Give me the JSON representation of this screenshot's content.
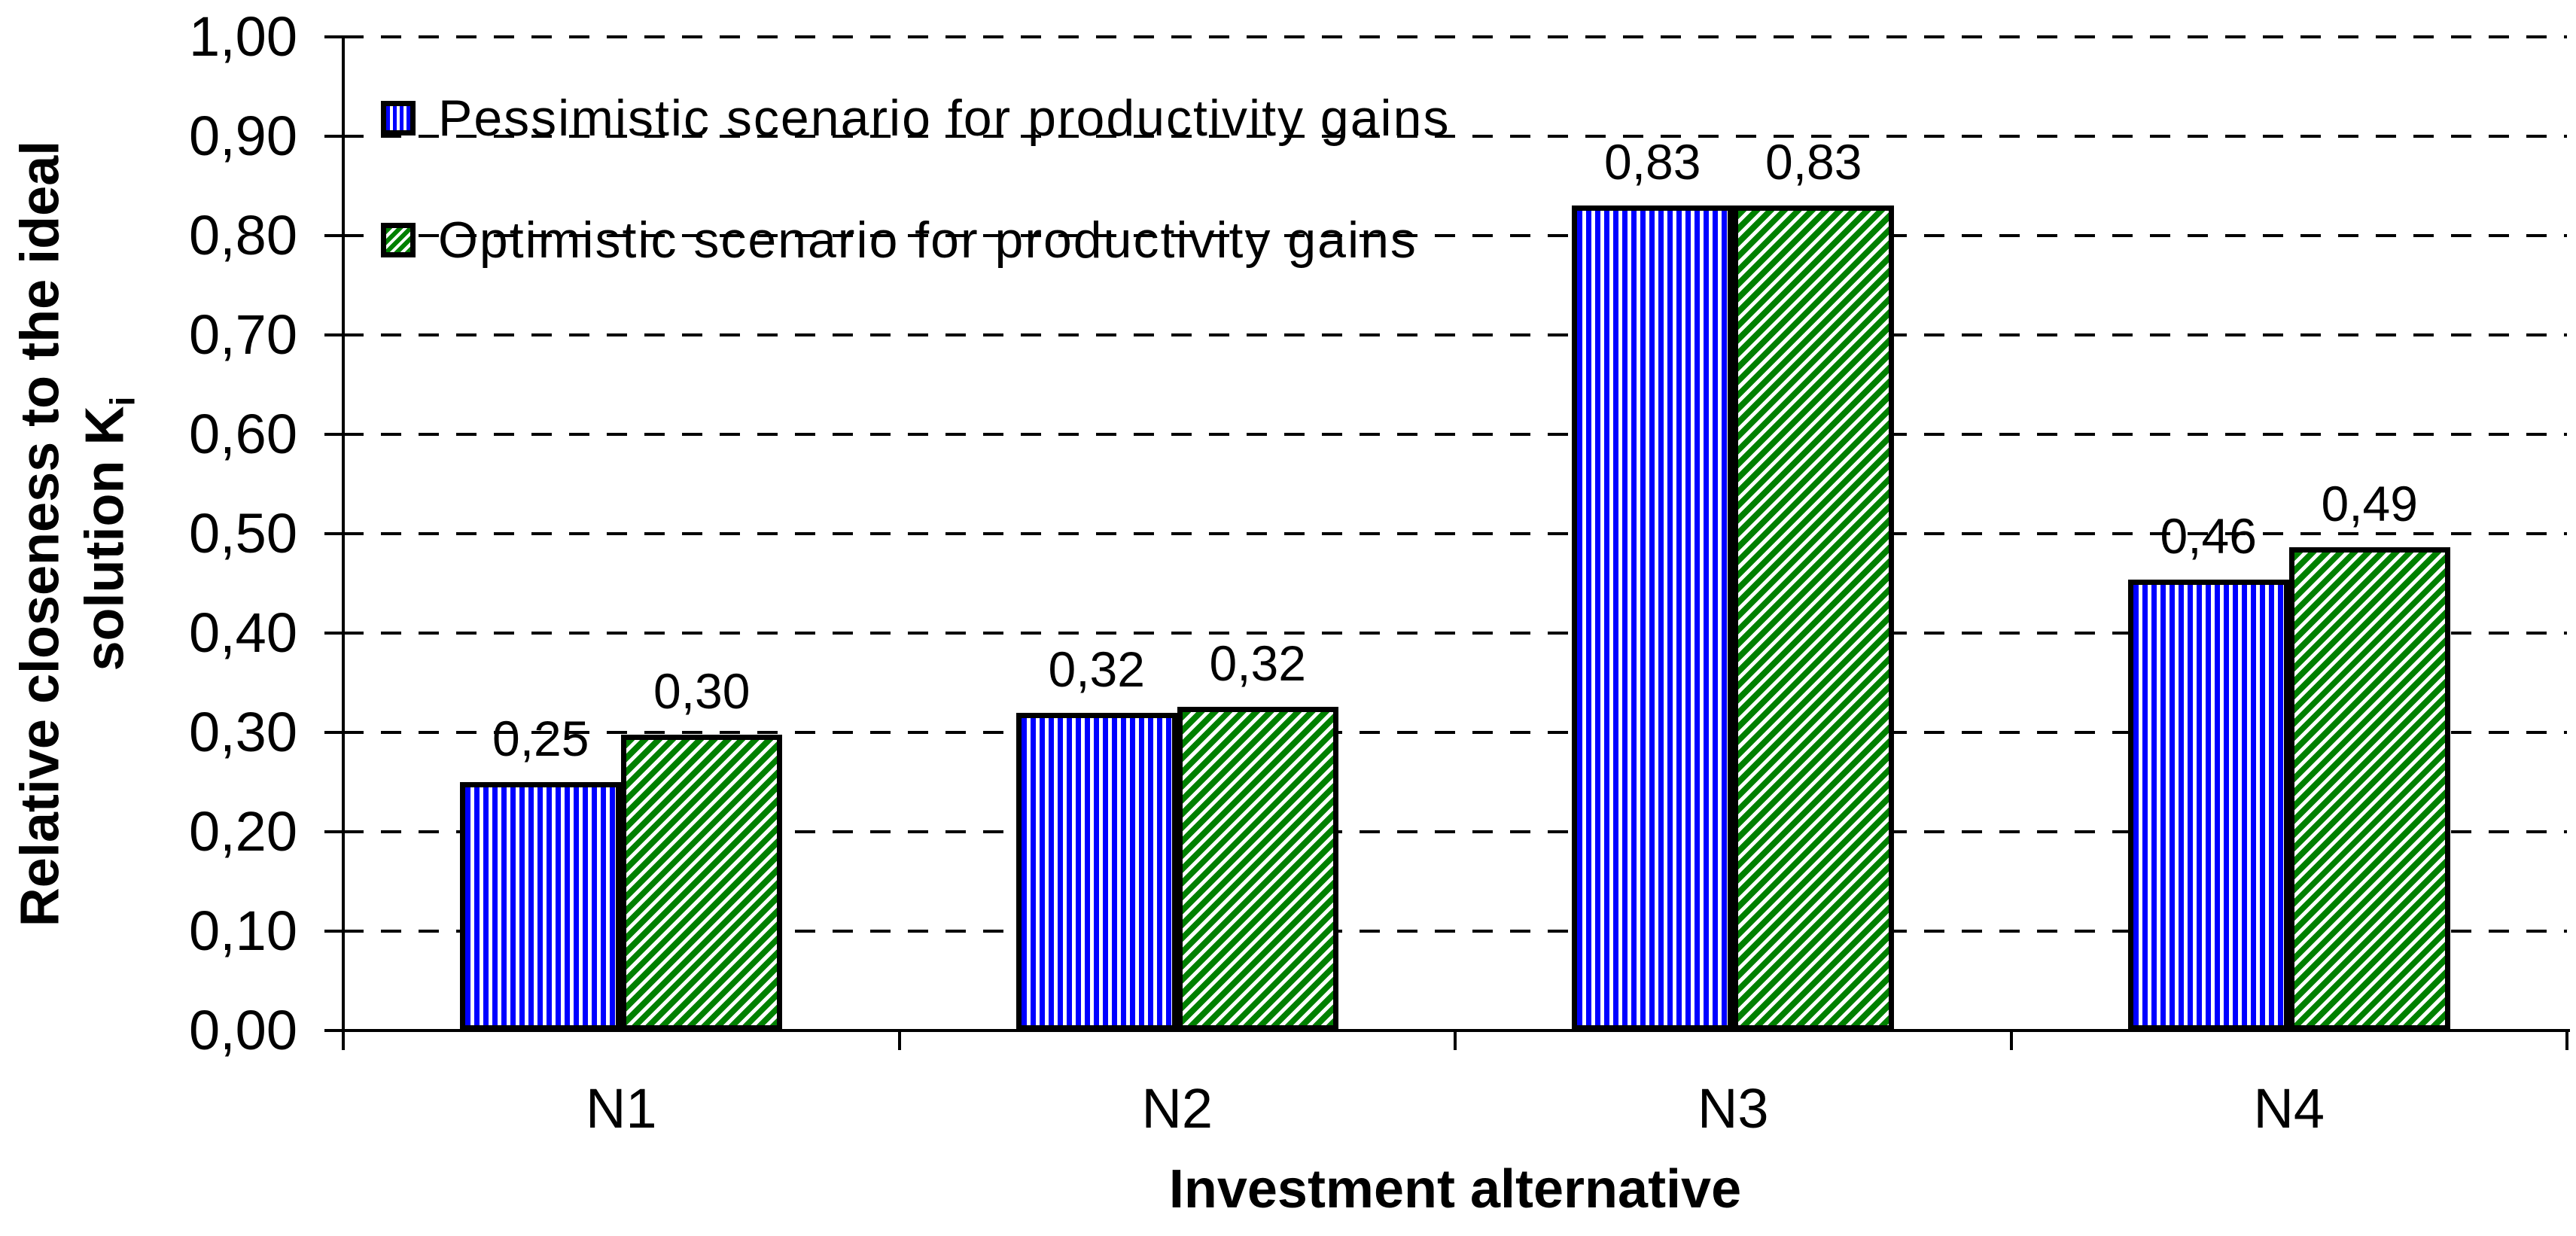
{
  "y_axis": {
    "title_line1": "Relative closeness to the ideal",
    "title_line2_prefix": "solution K",
    "title_line2_sub": "i",
    "tick_labels": [
      "0,00",
      "0,10",
      "0,20",
      "0,30",
      "0,40",
      "0,50",
      "0,60",
      "0,70",
      "0,80",
      "0,90",
      "1,00"
    ]
  },
  "x_axis": {
    "title": "Investment alternative",
    "categories": [
      "N1",
      "N2",
      "N3",
      "N4"
    ]
  },
  "legend": [
    {
      "label": "Pessimistic scenario for productivity gains",
      "pattern": "blue-vertical-stripes",
      "color": "#0000ff"
    },
    {
      "label": "Optimistic scenario for productivity gains",
      "pattern": "green-diagonal-stripes",
      "color": "#008000"
    }
  ],
  "colors": {
    "pessimistic": "#0000ff",
    "optimistic": "#008000",
    "axis": "#000000",
    "background": "#ffffff"
  },
  "chart_data": {
    "type": "bar",
    "categories": [
      "N1",
      "N2",
      "N3",
      "N4"
    ],
    "series": [
      {
        "name": "Pessimistic scenario for productivity gains",
        "values": [
          0.25,
          0.32,
          0.83,
          0.46
        ],
        "data_labels": [
          "0,25",
          "0,32",
          "0,83",
          "0,46"
        ],
        "bar_heights": [
          0.25,
          0.32,
          0.83,
          0.454
        ],
        "color": "#0000ff",
        "pattern": "vertical-stripes"
      },
      {
        "name": "Optimistic scenario for productivity gains",
        "values": [
          0.3,
          0.32,
          0.83,
          0.49
        ],
        "data_labels": [
          "0,30",
          "0,32",
          "0,83",
          "0,49"
        ],
        "bar_heights": [
          0.298,
          0.326,
          0.83,
          0.486
        ],
        "color": "#008000",
        "pattern": "diagonal-stripes"
      }
    ],
    "title": "",
    "xlabel": "Investment alternative",
    "ylabel": "Relative closeness to the ideal solution Ki",
    "ylim": [
      0.0,
      1.0
    ],
    "ytick_step": 0.1,
    "ytick_labels": [
      "0,00",
      "0,10",
      "0,20",
      "0,30",
      "0,40",
      "0,50",
      "0,60",
      "0,70",
      "0,80",
      "0,90",
      "1,00"
    ],
    "decimal_separator": ",",
    "grid": "horizontal-dashed",
    "legend_position": "top-left-inside"
  }
}
